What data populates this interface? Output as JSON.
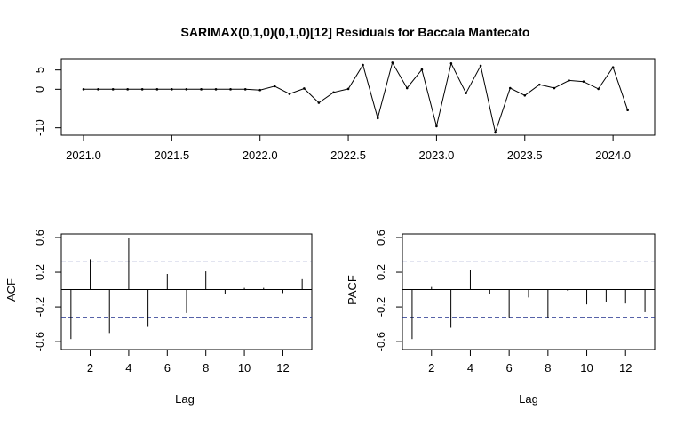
{
  "chart_data": [
    {
      "type": "line",
      "title": "SARIMAX(0,1,0)(0,1,0)[12] Residuals for Baccala Mantecato",
      "xlabel": "",
      "ylabel": "",
      "xlim": [
        2021.0,
        2024.1
      ],
      "ylim": [
        -11,
        7
      ],
      "x_ticks": [
        2021.0,
        2021.5,
        2022.0,
        2022.5,
        2023.0,
        2023.5,
        2024.0
      ],
      "x_tick_labels": [
        "2021.0",
        "2021.5",
        "2022.0",
        "2022.5",
        "2023.0",
        "2023.5",
        "2024.0"
      ],
      "y_ticks": [
        5,
        0,
        -10
      ],
      "y_tick_labels": [
        "5",
        "0",
        "-10"
      ],
      "series": [
        {
          "x": [
            2021.0,
            2021.083,
            2021.167,
            2021.25,
            2021.333,
            2021.417,
            2021.5,
            2021.583,
            2021.667,
            2021.75,
            2021.833,
            2021.917,
            2022.0,
            2022.083,
            2022.167,
            2022.25,
            2022.333,
            2022.417,
            2022.5,
            2022.583,
            2022.667,
            2022.75,
            2022.833,
            2022.917,
            2023.0,
            2023.083,
            2023.167,
            2023.25,
            2023.333,
            2023.417,
            2023.5,
            2023.583,
            2023.667,
            2023.75,
            2023.833,
            2023.917,
            2024.0,
            2024.083
          ],
          "values": [
            0,
            0,
            0,
            0,
            0,
            0,
            0,
            0,
            0,
            0,
            0,
            0,
            -0.2,
            0.8,
            -1.2,
            0.2,
            -3.5,
            -0.8,
            0.1,
            6.3,
            -7.5,
            6.9,
            0.3,
            5.1,
            -9.6,
            6.7,
            -1.0,
            6.1,
            -11.2,
            0.3,
            -1.6,
            1.2,
            0.3,
            2.3,
            2.0,
            0.1,
            5.7,
            -5.4
          ]
        }
      ]
    },
    {
      "type": "bar",
      "xlabel": "Lag",
      "ylabel": "ACF",
      "xlim": [
        0.5,
        13.5
      ],
      "ylim": [
        -0.65,
        0.6
      ],
      "x_ticks": [
        2,
        4,
        6,
        8,
        10,
        12
      ],
      "x_tick_labels": [
        "2",
        "4",
        "6",
        "8",
        "10",
        "12"
      ],
      "y_ticks": [
        0.6,
        0.2,
        -0.2,
        -0.6
      ],
      "y_tick_labels": [
        "0.6",
        "0.2",
        "-0.2",
        "-0.6"
      ],
      "confidence_bound": 0.32,
      "lags": [
        1,
        2,
        3,
        4,
        5,
        6,
        7,
        8,
        9,
        10,
        11,
        12,
        13
      ],
      "values": [
        -0.57,
        0.35,
        -0.5,
        0.59,
        -0.43,
        0.18,
        -0.27,
        0.21,
        -0.05,
        0.02,
        0.02,
        -0.04,
        0.12
      ]
    },
    {
      "type": "bar",
      "xlabel": "Lag",
      "ylabel": "PACF",
      "xlim": [
        0.5,
        13.5
      ],
      "ylim": [
        -0.65,
        0.6
      ],
      "x_ticks": [
        2,
        4,
        6,
        8,
        10,
        12
      ],
      "x_tick_labels": [
        "2",
        "4",
        "6",
        "8",
        "10",
        "12"
      ],
      "y_ticks": [
        0.6,
        0.2,
        -0.2,
        -0.6
      ],
      "y_tick_labels": [
        "0.6",
        "0.2",
        "-0.2",
        "-0.6"
      ],
      "confidence_bound": 0.32,
      "lags": [
        1,
        2,
        3,
        4,
        5,
        6,
        7,
        8,
        9,
        10,
        11,
        12,
        13
      ],
      "values": [
        -0.57,
        0.03,
        -0.44,
        0.23,
        -0.05,
        -0.32,
        -0.09,
        -0.33,
        -0.01,
        -0.17,
        -0.14,
        -0.16,
        -0.26
      ]
    }
  ]
}
